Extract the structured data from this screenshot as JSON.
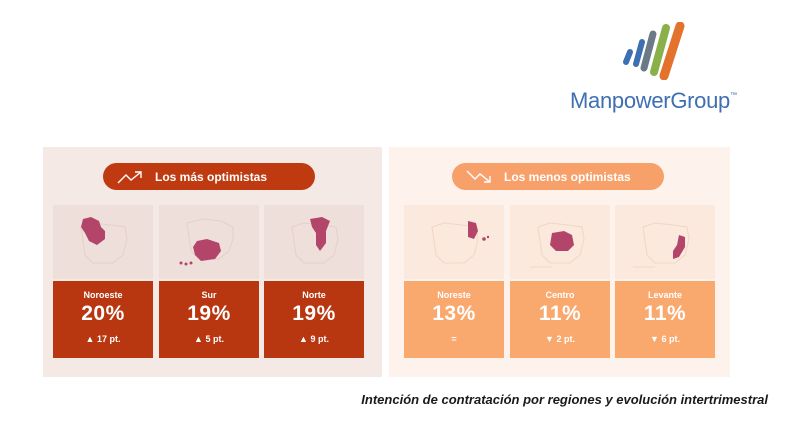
{
  "logo": {
    "brand": "ManpowerGroup",
    "trademark": "™"
  },
  "most_optimistic": {
    "title": "Los más optimistas",
    "icon": "trend-up-icon",
    "cards": [
      {
        "region": "Noroeste",
        "percent": "20%",
        "change": "▲ 17 pt."
      },
      {
        "region": "Sur",
        "percent": "19%",
        "change": "▲ 5 pt."
      },
      {
        "region": "Norte",
        "percent": "19%",
        "change": "▲ 9 pt."
      }
    ]
  },
  "least_optimistic": {
    "title": "Los menos optimistas",
    "icon": "trend-down-icon",
    "cards": [
      {
        "region": "Noreste",
        "percent": "13%",
        "change": "="
      },
      {
        "region": "Centro",
        "percent": "11%",
        "change": "▼ 2 pt."
      },
      {
        "region": "Levante",
        "percent": "11%",
        "change": "▼ 6 pt."
      }
    ]
  },
  "caption": "Intención de contratación por regiones y evolución intertrimestral",
  "colors": {
    "most_accent": "#b83710",
    "least_accent": "#f9a86e",
    "highlight_region": "#b4456a"
  }
}
